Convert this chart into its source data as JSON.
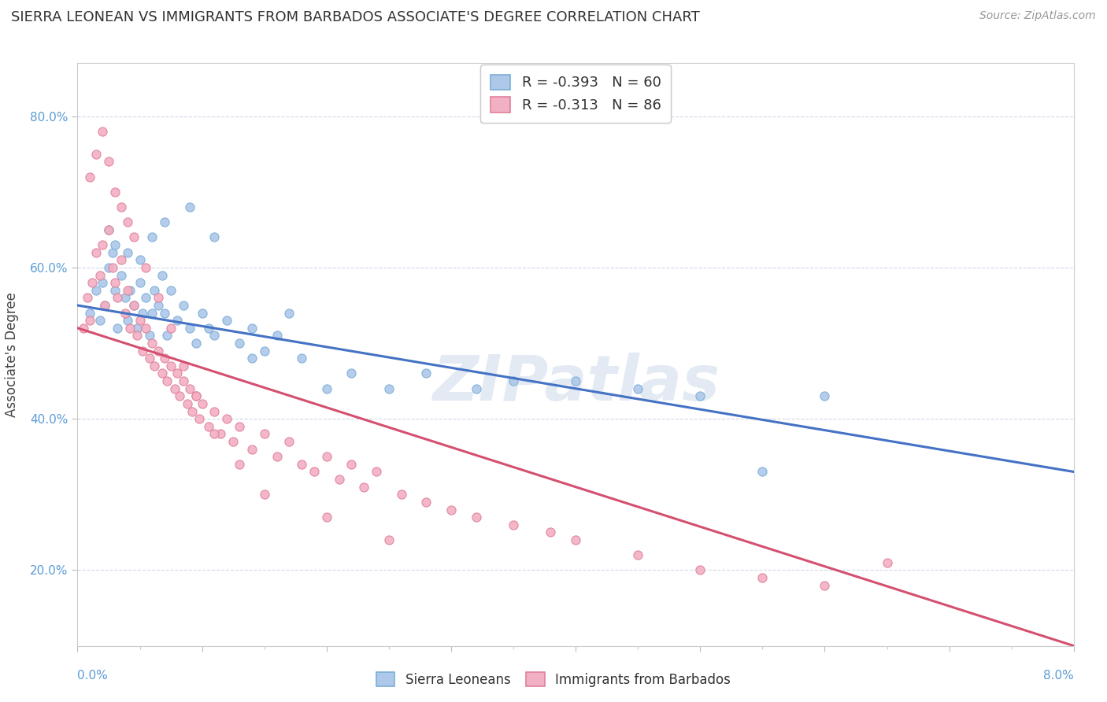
{
  "title": "SIERRA LEONEAN VS IMMIGRANTS FROM BARBADOS ASSOCIATE'S DEGREE CORRELATION CHART",
  "source": "Source: ZipAtlas.com",
  "ylabel": "Associate's Degree",
  "xmin": 0.0,
  "xmax": 8.0,
  "ymin": 10.0,
  "ymax": 87.0,
  "yticks": [
    20.0,
    40.0,
    60.0,
    80.0
  ],
  "series1_label": "Sierra Leoneans",
  "series2_label": "Immigrants from Barbados",
  "series1_color": "#adc8e8",
  "series2_color": "#f2b0c4",
  "series1_edge": "#7aaed8",
  "series2_edge": "#e08098",
  "trendline1_color": "#4472c4",
  "trendline2_color": "#d45070",
  "R1": "-0.393",
  "N1": "60",
  "R2": "-0.313",
  "N2": "86",
  "watermark_color": "#ccdaec",
  "series1_x": [
    0.1,
    0.15,
    0.18,
    0.2,
    0.22,
    0.25,
    0.28,
    0.3,
    0.32,
    0.35,
    0.38,
    0.4,
    0.42,
    0.45,
    0.48,
    0.5,
    0.52,
    0.55,
    0.58,
    0.6,
    0.62,
    0.65,
    0.68,
    0.7,
    0.72,
    0.75,
    0.8,
    0.85,
    0.9,
    0.95,
    1.0,
    1.05,
    1.1,
    1.2,
    1.3,
    1.4,
    1.5,
    1.6,
    1.8,
    2.0,
    2.2,
    2.5,
    2.8,
    3.2,
    3.5,
    4.0,
    4.5,
    5.0,
    5.5,
    6.0,
    0.25,
    0.3,
    0.4,
    0.5,
    0.6,
    0.7,
    0.9,
    1.1,
    1.4,
    1.7
  ],
  "series1_y": [
    54,
    57,
    53,
    58,
    55,
    60,
    62,
    57,
    52,
    59,
    56,
    53,
    57,
    55,
    52,
    58,
    54,
    56,
    51,
    54,
    57,
    55,
    59,
    54,
    51,
    57,
    53,
    55,
    52,
    50,
    54,
    52,
    51,
    53,
    50,
    52,
    49,
    51,
    48,
    44,
    46,
    44,
    46,
    44,
    45,
    45,
    44,
    43,
    33,
    43,
    65,
    63,
    62,
    61,
    64,
    66,
    68,
    64,
    48,
    54
  ],
  "series2_x": [
    0.05,
    0.08,
    0.1,
    0.12,
    0.15,
    0.18,
    0.2,
    0.22,
    0.25,
    0.28,
    0.3,
    0.32,
    0.35,
    0.38,
    0.4,
    0.42,
    0.45,
    0.48,
    0.5,
    0.52,
    0.55,
    0.58,
    0.6,
    0.62,
    0.65,
    0.68,
    0.7,
    0.72,
    0.75,
    0.78,
    0.8,
    0.82,
    0.85,
    0.88,
    0.9,
    0.92,
    0.95,
    0.98,
    1.0,
    1.05,
    1.1,
    1.15,
    1.2,
    1.25,
    1.3,
    1.4,
    1.5,
    1.6,
    1.7,
    1.8,
    1.9,
    2.0,
    2.1,
    2.2,
    2.3,
    2.4,
    2.6,
    2.8,
    3.0,
    3.2,
    3.5,
    3.8,
    4.0,
    4.5,
    5.0,
    5.5,
    6.0,
    6.5,
    0.1,
    0.15,
    0.2,
    0.25,
    0.3,
    0.35,
    0.4,
    0.45,
    0.55,
    0.65,
    0.75,
    0.85,
    0.95,
    1.1,
    1.3,
    1.5,
    2.0,
    2.5
  ],
  "series2_y": [
    52,
    56,
    53,
    58,
    62,
    59,
    63,
    55,
    65,
    60,
    58,
    56,
    61,
    54,
    57,
    52,
    55,
    51,
    53,
    49,
    52,
    48,
    50,
    47,
    49,
    46,
    48,
    45,
    47,
    44,
    46,
    43,
    45,
    42,
    44,
    41,
    43,
    40,
    42,
    39,
    41,
    38,
    40,
    37,
    39,
    36,
    38,
    35,
    37,
    34,
    33,
    35,
    32,
    34,
    31,
    33,
    30,
    29,
    28,
    27,
    26,
    25,
    24,
    22,
    20,
    19,
    18,
    21,
    72,
    75,
    78,
    74,
    70,
    68,
    66,
    64,
    60,
    56,
    52,
    47,
    43,
    38,
    34,
    30,
    27,
    24
  ]
}
